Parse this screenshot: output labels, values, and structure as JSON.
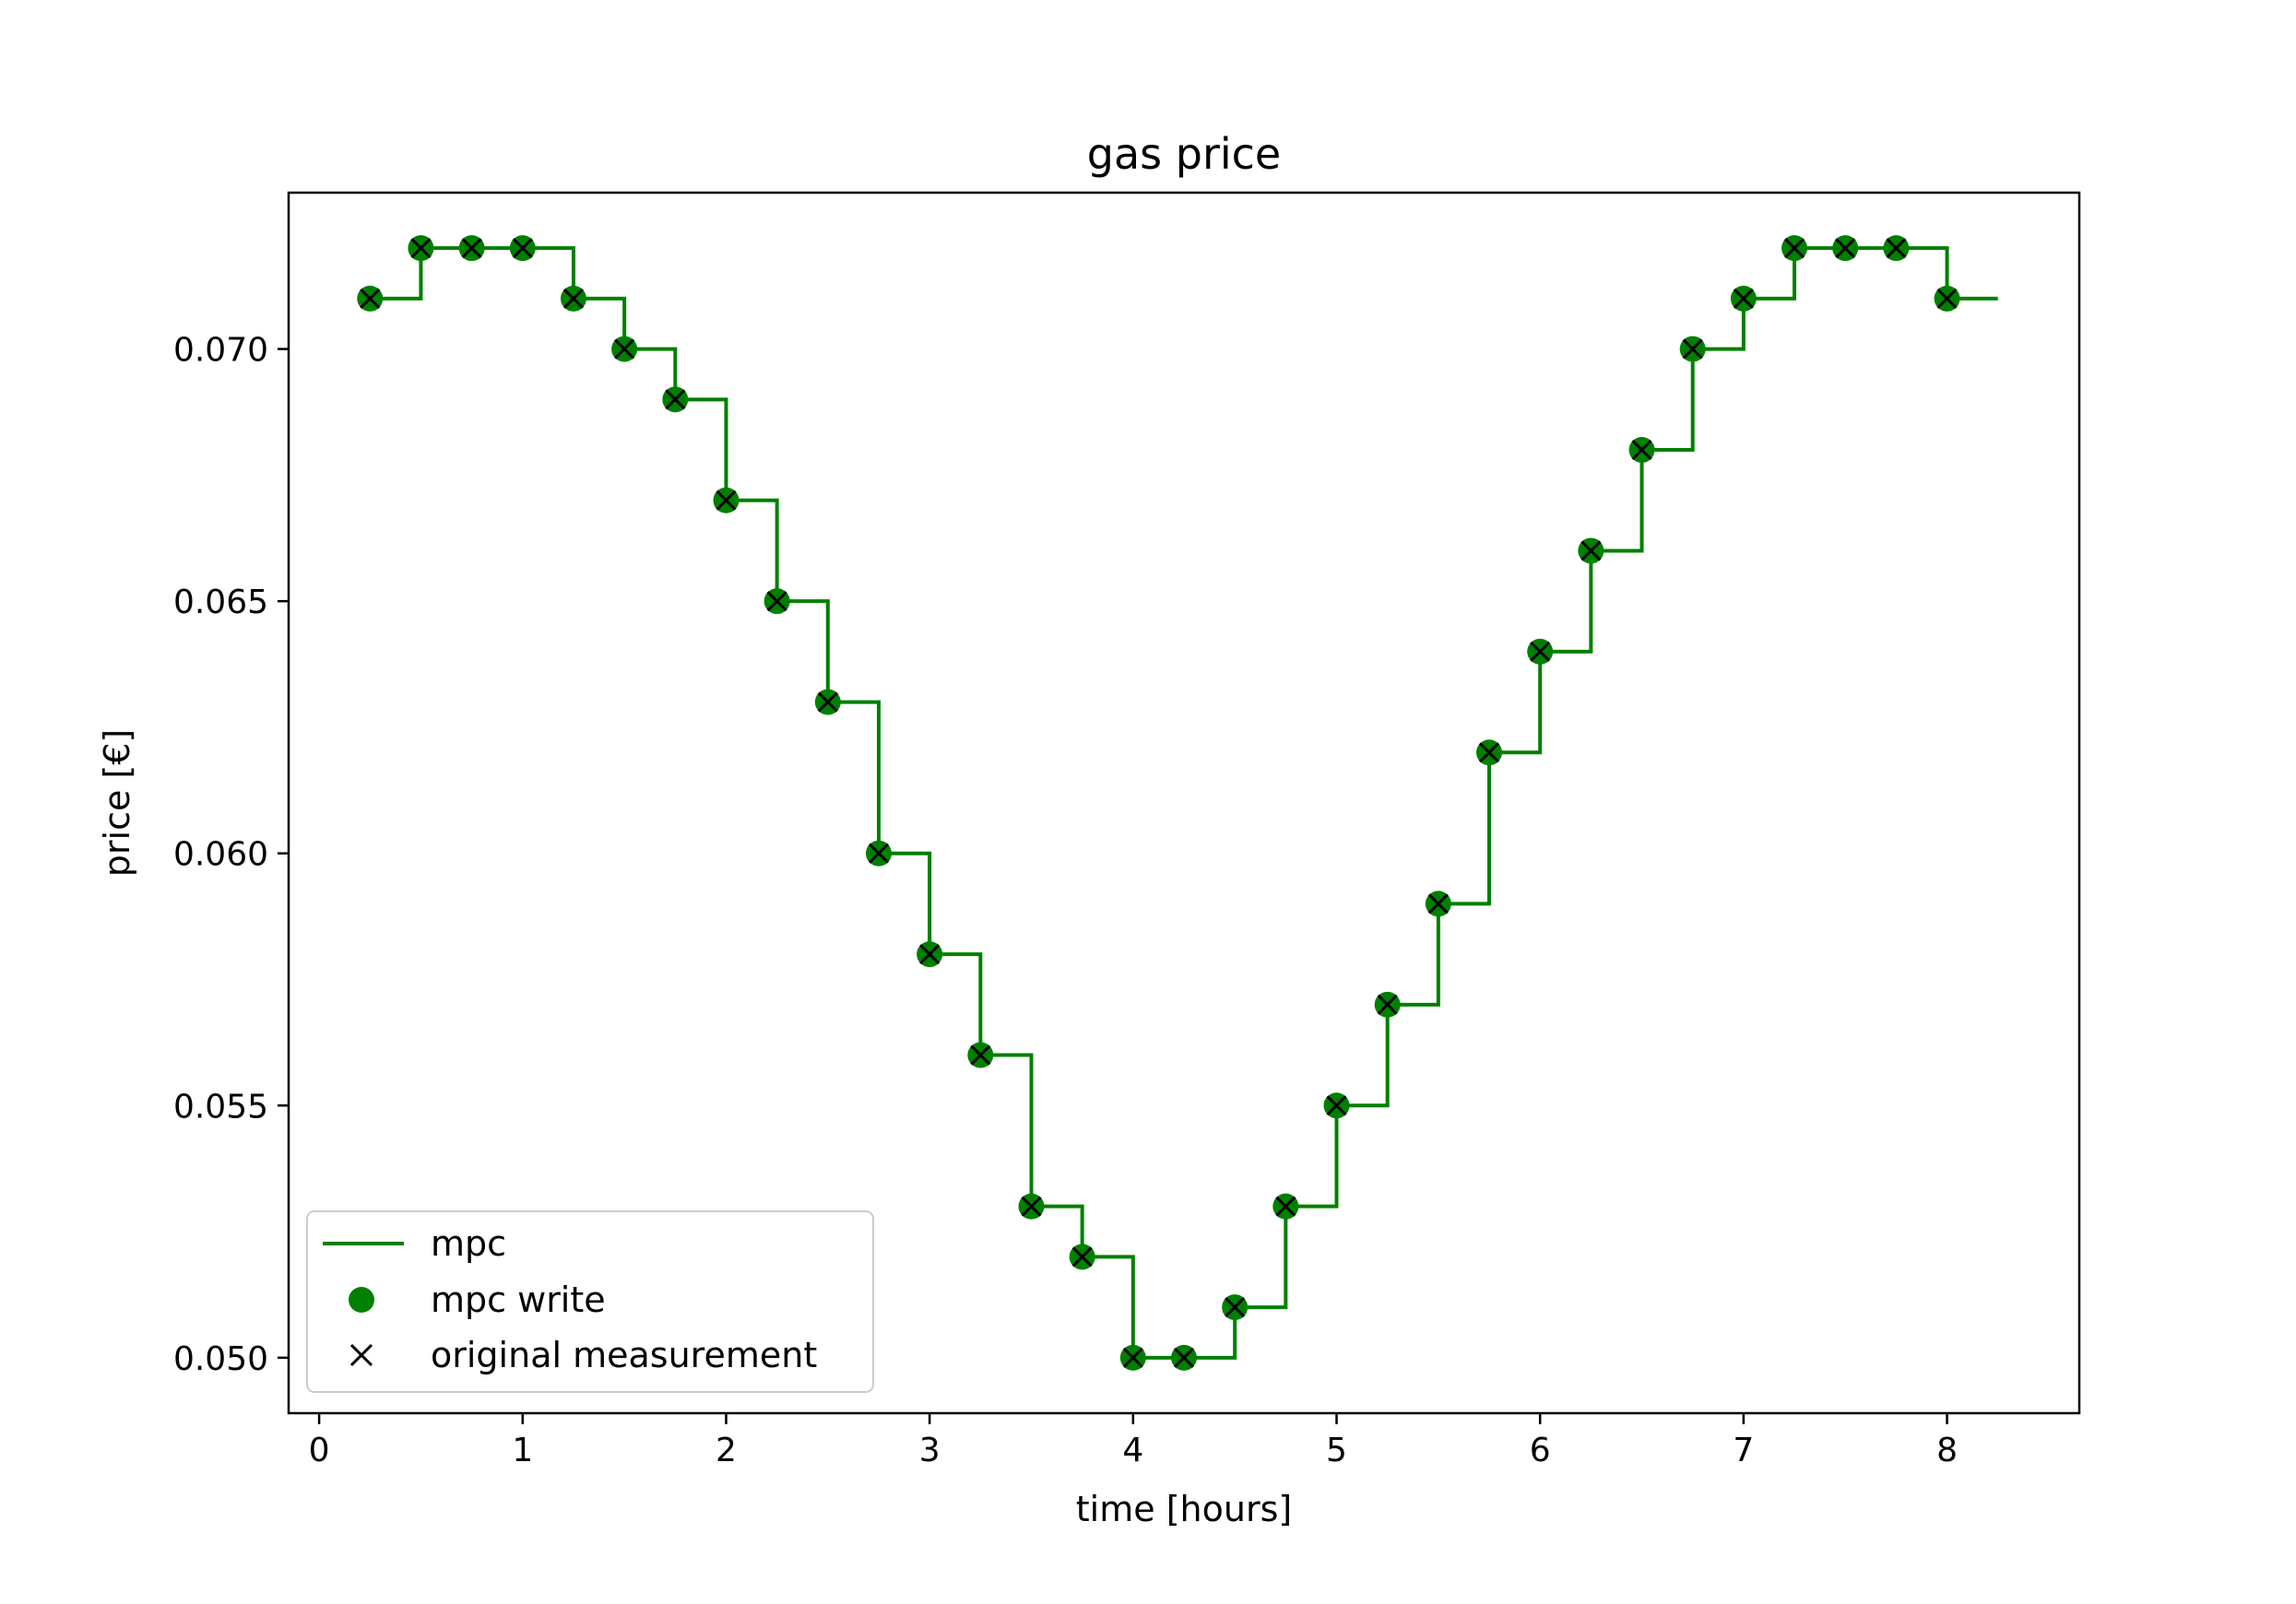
{
  "chart_data": {
    "type": "line",
    "title": "gas price",
    "xlabel": "time [hours]",
    "ylabel": "price [€]",
    "xlim": [
      -0.15,
      8.65
    ],
    "ylim": [
      0.0489,
      0.0731
    ],
    "xticks": [
      0,
      1,
      2,
      3,
      4,
      5,
      6,
      7,
      8
    ],
    "xtick_labels": [
      "0",
      "1",
      "2",
      "3",
      "4",
      "5",
      "6",
      "7",
      "8"
    ],
    "yticks": [
      0.05,
      0.055,
      0.06,
      0.065,
      0.07
    ],
    "ytick_labels": [
      "0.050",
      "0.055",
      "0.060",
      "0.065",
      "0.070"
    ],
    "grid": false,
    "legend_position": "lower-left",
    "colors": {
      "mpc": "#008000",
      "measurement": "#000000"
    },
    "series": [
      {
        "name": "mpc",
        "kind": "step-post",
        "x": [
          0.25,
          0.5,
          0.75,
          1.0,
          1.25,
          1.5,
          1.75,
          2.0,
          2.25,
          2.5,
          2.75,
          3.0,
          3.25,
          3.5,
          3.75,
          4.0,
          4.25,
          4.5,
          4.75,
          5.0,
          5.25,
          5.5,
          5.75,
          6.0,
          6.25,
          6.5,
          6.75,
          7.0,
          7.25,
          7.5,
          7.75,
          8.0,
          8.25
        ],
        "y": [
          0.071,
          0.072,
          0.072,
          0.072,
          0.071,
          0.07,
          0.069,
          0.067,
          0.065,
          0.063,
          0.06,
          0.058,
          0.056,
          0.053,
          0.052,
          0.05,
          0.05,
          0.051,
          0.053,
          0.055,
          0.057,
          0.059,
          0.062,
          0.064,
          0.066,
          0.068,
          0.07,
          0.071,
          0.072,
          0.072,
          0.072,
          0.071,
          0.071
        ]
      },
      {
        "name": "mpc write",
        "kind": "markers-circle",
        "x": [
          0.25,
          0.5,
          0.75,
          1.0,
          1.25,
          1.5,
          1.75,
          2.0,
          2.25,
          2.5,
          2.75,
          3.0,
          3.25,
          3.5,
          3.75,
          4.0,
          4.25,
          4.5,
          4.75,
          5.0,
          5.25,
          5.5,
          5.75,
          6.0,
          6.25,
          6.5,
          6.75,
          7.0,
          7.25,
          7.5,
          7.75,
          8.0
        ],
        "y": [
          0.071,
          0.072,
          0.072,
          0.072,
          0.071,
          0.07,
          0.069,
          0.067,
          0.065,
          0.063,
          0.06,
          0.058,
          0.056,
          0.053,
          0.052,
          0.05,
          0.05,
          0.051,
          0.053,
          0.055,
          0.057,
          0.059,
          0.062,
          0.064,
          0.066,
          0.068,
          0.07,
          0.071,
          0.072,
          0.072,
          0.072,
          0.071
        ]
      },
      {
        "name": "original measurement",
        "kind": "markers-x",
        "x": [
          0.25,
          0.5,
          0.75,
          1.0,
          1.25,
          1.5,
          1.75,
          2.0,
          2.25,
          2.5,
          2.75,
          3.0,
          3.25,
          3.5,
          3.75,
          4.0,
          4.25,
          4.5,
          4.75,
          5.0,
          5.25,
          5.5,
          5.75,
          6.0,
          6.25,
          6.5,
          6.75,
          7.0,
          7.25,
          7.5,
          7.75,
          8.0
        ],
        "y": [
          0.071,
          0.072,
          0.072,
          0.072,
          0.071,
          0.07,
          0.069,
          0.067,
          0.065,
          0.063,
          0.06,
          0.058,
          0.056,
          0.053,
          0.052,
          0.05,
          0.05,
          0.051,
          0.053,
          0.055,
          0.057,
          0.059,
          0.062,
          0.064,
          0.066,
          0.068,
          0.07,
          0.071,
          0.072,
          0.072,
          0.072,
          0.071
        ]
      }
    ]
  }
}
